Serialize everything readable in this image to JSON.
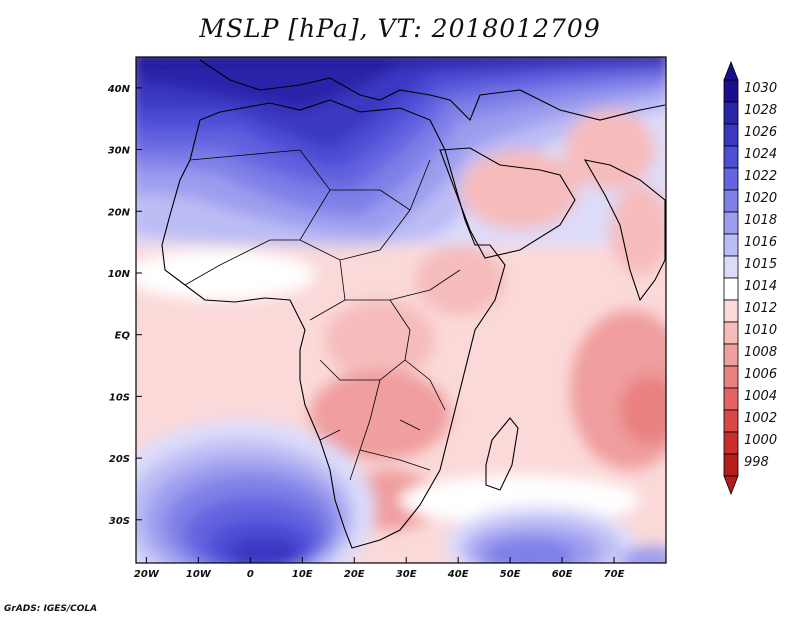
{
  "title": "MSLP [hPa], VT: 2018012709",
  "credit": "GrADS: IGES/COLA",
  "chart_data": {
    "type": "heatmap",
    "variable": "MSLP",
    "units": "hPa",
    "valid_time": "2018012709",
    "x_ticks": [
      "20W",
      "10W",
      "0",
      "10E",
      "20E",
      "30E",
      "40E",
      "50E",
      "60E",
      "70E"
    ],
    "y_ticks": [
      "40N",
      "30N",
      "20N",
      "10N",
      "EQ",
      "10S",
      "20S",
      "30S"
    ],
    "lon_range": [
      -22,
      80
    ],
    "lat_range": [
      -37,
      45
    ],
    "colorbar": {
      "levels": [
        "1030",
        "1028",
        "1026",
        "1024",
        "1022",
        "1020",
        "1018",
        "1016",
        "1015",
        "1014",
        "1012",
        "1010",
        "1008",
        "1006",
        "1004",
        "1002",
        "1000",
        "998"
      ],
      "colors": [
        "#1c0f8c",
        "#2a24a8",
        "#3a38c2",
        "#4d4dd6",
        "#6464e0",
        "#7f7fe8",
        "#9d9def",
        "#bcbcf5",
        "#dcdcfa",
        "#ffffff",
        "#fbd9d9",
        "#f6bcbc",
        "#f09e9e",
        "#e98181",
        "#e26363",
        "#d84848",
        "#c92e2e",
        "#b51d1d"
      ]
    }
  }
}
